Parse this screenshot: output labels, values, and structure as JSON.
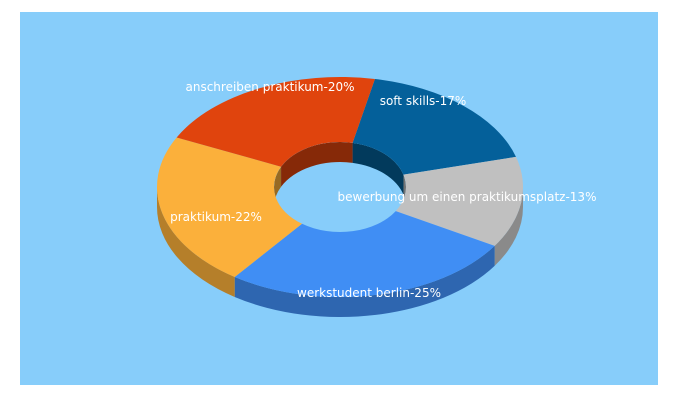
{
  "chart_data": {
    "type": "pie",
    "donut": true,
    "three_d": true,
    "slices": [
      {
        "label": "soft skills-17%",
        "value": 17,
        "color": "#04609a"
      },
      {
        "label": "bewerbung um einen praktikumsplatz-13%",
        "value": 13,
        "color": "#c0c0c0"
      },
      {
        "label": "werkstudent berlin-25%",
        "value": 25,
        "color": "#408ef4"
      },
      {
        "label": "praktikum-22%",
        "value": 22,
        "color": "#fbb03b"
      },
      {
        "label": "anschreiben praktikum-20%",
        "value": 20,
        "color": "#e0440d"
      }
    ],
    "background": "#87cdfa"
  }
}
